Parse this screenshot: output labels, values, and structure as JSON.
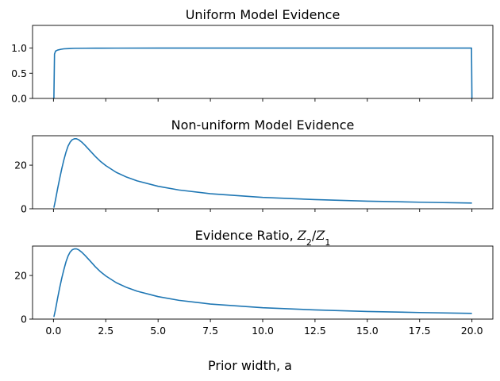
{
  "figure": {
    "xlabel": "Prior width, a",
    "line_color": "#1f77b4"
  },
  "chart_data": [
    {
      "type": "line",
      "title": "Uniform Model Evidence",
      "xlim": [
        -1.0,
        21.0
      ],
      "ylim": [
        0,
        1.45
      ],
      "yticks": [
        0.0,
        0.5,
        1.0
      ],
      "ytick_labels": [
        "0.0",
        "0.5",
        "1.0"
      ],
      "xticks": [
        0,
        2.5,
        5,
        7.5,
        10,
        12.5,
        15,
        17.5,
        20
      ],
      "xtick_labels_visible": false,
      "series": [
        {
          "x": [
            0.02,
            0.05,
            0.1,
            0.2,
            0.35,
            0.5,
            0.75,
            1.0,
            1.5,
            2.0,
            3.0,
            5.0,
            7.5,
            10.0,
            12.5,
            15.0,
            17.5,
            19.98,
            20.0
          ],
          "y": [
            0.0,
            0.88,
            0.94,
            0.96,
            0.975,
            0.985,
            0.99,
            0.995,
            0.997,
            0.998,
            0.999,
            1.0,
            1.0,
            1.0,
            1.0,
            1.0,
            1.0,
            1.0,
            0.0
          ]
        }
      ]
    },
    {
      "type": "line",
      "title": "Non-uniform Model Evidence",
      "xlim": [
        -1.0,
        21.0
      ],
      "ylim": [
        0,
        33.5
      ],
      "yticks": [
        0,
        20
      ],
      "ytick_labels": [
        "0",
        "20"
      ],
      "xticks": [
        0,
        2.5,
        5,
        7.5,
        10,
        12.5,
        15,
        17.5,
        20
      ],
      "xtick_labels_visible": false,
      "series": [
        {
          "x": [
            0.02,
            0.1,
            0.2,
            0.3,
            0.4,
            0.5,
            0.6,
            0.7,
            0.8,
            0.9,
            1.0,
            1.1,
            1.2,
            1.35,
            1.5,
            1.75,
            2.0,
            2.25,
            2.5,
            3.0,
            3.5,
            4.0,
            5.0,
            6.0,
            7.5,
            10.0,
            12.5,
            15.0,
            17.5,
            20.0
          ],
          "y": [
            0.5,
            4.2,
            9.3,
            14.0,
            18.5,
            22.5,
            26.0,
            28.8,
            30.6,
            31.7,
            32.1,
            32.1,
            31.7,
            30.6,
            29.2,
            26.6,
            24.0,
            21.7,
            19.8,
            16.7,
            14.5,
            12.8,
            10.3,
            8.6,
            6.9,
            5.2,
            4.2,
            3.5,
            3.0,
            2.6
          ]
        }
      ]
    },
    {
      "type": "line",
      "title": "Evidence Ratio, ",
      "title_math": [
        "Z",
        "2",
        "/",
        "Z",
        "1"
      ],
      "xlim": [
        -1.0,
        21.0
      ],
      "ylim": [
        0,
        33.5
      ],
      "yticks": [
        0,
        20
      ],
      "ytick_labels": [
        "0",
        "20"
      ],
      "xticks": [
        0,
        2.5,
        5,
        7.5,
        10,
        12.5,
        15,
        17.5,
        20
      ],
      "xtick_labels": [
        "0.0",
        "2.5",
        "5.0",
        "7.5",
        "10.0",
        "12.5",
        "15.0",
        "17.5",
        "20.0"
      ],
      "xtick_labels_visible": true,
      "series": [
        {
          "x": [
            0.02,
            0.1,
            0.2,
            0.3,
            0.4,
            0.5,
            0.6,
            0.7,
            0.8,
            0.9,
            1.0,
            1.1,
            1.2,
            1.35,
            1.5,
            1.75,
            2.0,
            2.25,
            2.5,
            3.0,
            3.5,
            4.0,
            5.0,
            6.0,
            7.5,
            10.0,
            12.5,
            15.0,
            17.5,
            20.0
          ],
          "y": [
            1.0,
            4.5,
            9.7,
            14.5,
            18.9,
            22.8,
            26.3,
            29.0,
            30.8,
            31.8,
            32.2,
            32.2,
            31.8,
            30.7,
            29.3,
            26.7,
            24.0,
            21.7,
            19.8,
            16.7,
            14.5,
            12.8,
            10.3,
            8.6,
            6.9,
            5.2,
            4.2,
            3.5,
            3.0,
            2.6
          ]
        }
      ]
    }
  ]
}
